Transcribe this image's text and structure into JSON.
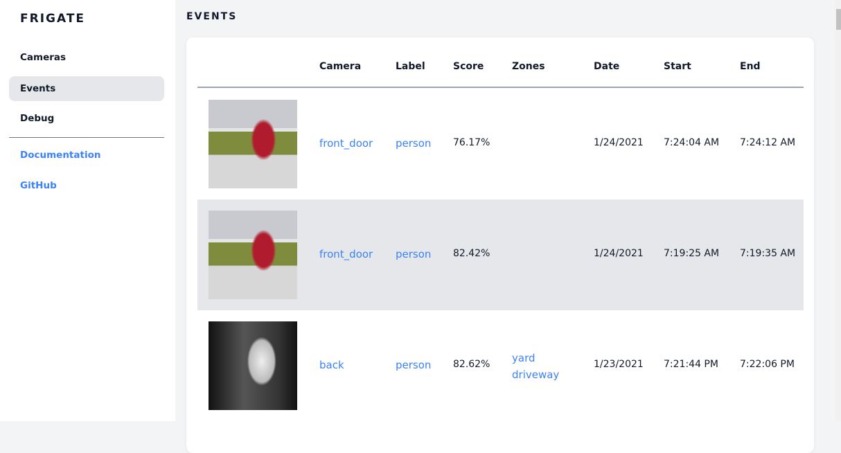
{
  "sidebar": {
    "brand": "FRIGATE",
    "items": [
      {
        "label": "Cameras"
      },
      {
        "label": "Events",
        "active": true
      },
      {
        "label": "Debug"
      }
    ],
    "links": [
      {
        "label": "Documentation"
      },
      {
        "label": "GitHub"
      }
    ]
  },
  "page_title": "EVENTS",
  "table": {
    "headers": [
      "",
      "Camera",
      "Label",
      "Score",
      "Zones",
      "Date",
      "Start",
      "End"
    ],
    "rows": [
      {
        "camera": "front_door",
        "label": "person",
        "score": "76.17%",
        "zones": [
          "",
          ""
        ],
        "date": "1/24/2021",
        "start": "7:24:04 AM",
        "end": "7:24:12 AM",
        "thumb": "color"
      },
      {
        "camera": "front_door",
        "label": "person",
        "score": "82.42%",
        "zones": [
          "",
          ""
        ],
        "date": "1/24/2021",
        "start": "7:19:25 AM",
        "end": "7:19:35 AM",
        "thumb": "color"
      },
      {
        "camera": "back",
        "label": "person",
        "score": "82.62%",
        "zones": [
          "yard",
          "driveway"
        ],
        "date": "1/23/2021",
        "start": "7:21:44 PM",
        "end": "7:22:06 PM",
        "thumb": "night"
      }
    ]
  },
  "colors": {
    "accent": "#3b82f6",
    "active_bg": "#e5e7eb",
    "page_bg": "#f3f4f6"
  }
}
